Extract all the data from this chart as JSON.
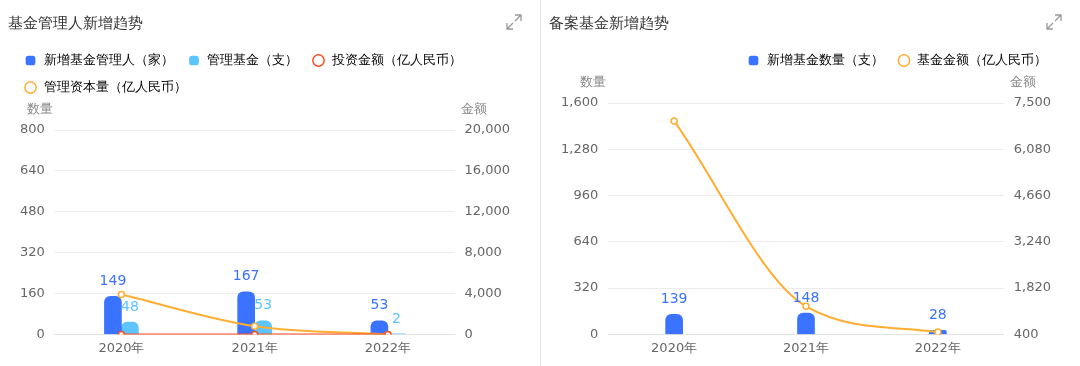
{
  "chart_data": [
    {
      "type": "bar",
      "title": "基金管理人新增趋势",
      "ylabel": "数量",
      "y2label": "金额",
      "categories": [
        "2020年",
        "2021年",
        "2022年"
      ],
      "series": [
        {
          "name": "新增基金管理人（家）",
          "color": "#3a73ff",
          "values": [
            149,
            167,
            53
          ],
          "value_labels": [
            "149",
            "167",
            "53"
          ]
        },
        {
          "name": "管理基金（支）",
          "color": "#5cc4ff",
          "values": [
            48,
            53,
            2
          ],
          "value_labels": [
            "48",
            "53",
            "2"
          ]
        },
        {
          "name": "投资金额（亿人民币）",
          "type": "line",
          "axis": "y2",
          "color": "#ff4a1f",
          "values": [
            0,
            0,
            0
          ]
        },
        {
          "name": "管理资本量（亿人民币）",
          "type": "line",
          "axis": "y2",
          "color": "#ffad33",
          "values": [
            3900,
            800,
            0
          ]
        }
      ],
      "ylim": [
        0,
        800
      ],
      "yticks": [
        0,
        160,
        320,
        480,
        640,
        800
      ],
      "y2lim": [
        0,
        20000
      ],
      "y2ticks": [
        0,
        {
          "value": 4000,
          "label": "4,000"
        },
        {
          "value": 8000,
          "label": "8,000"
        },
        {
          "value": 12000,
          "label": "12,000"
        },
        {
          "value": 16000,
          "label": "16,000"
        },
        {
          "value": 20000,
          "label": "20,000"
        }
      ],
      "grid": "y",
      "legend": "top left",
      "marker": "circle"
    },
    {
      "type": "bar",
      "title": "备案基金新增趋势",
      "ylabel": "数量",
      "y2label": "金额",
      "categories": [
        "2020年",
        "2021年",
        "2022年"
      ],
      "series": [
        {
          "name": "新增基金数量（支）",
          "color": "#3a73ff",
          "values": [
            139,
            148,
            28
          ],
          "value_labels": [
            "139",
            "148",
            "28"
          ]
        },
        {
          "name": "基金金额（亿人民币）",
          "type": "line",
          "axis": "y2",
          "color": "#ffad33",
          "values": [
            6950,
            1260,
            470
          ]
        }
      ],
      "ylim": [
        0,
        1600
      ],
      "yticks": [
        0,
        {
          "value": 320,
          "label": "320"
        },
        {
          "value": 640,
          "label": "640"
        },
        {
          "value": 960,
          "label": "960"
        },
        {
          "value": 1280,
          "label": "1,280"
        },
        {
          "value": 1600,
          "label": "1,600"
        }
      ],
      "y2lim": [
        400,
        7500
      ],
      "y2ticks": [
        400,
        {
          "value": 1820,
          "label": "1,820"
        },
        {
          "value": 3240,
          "label": "3,240"
        },
        {
          "value": 4660,
          "label": "4,660"
        },
        {
          "value": 6080,
          "label": "6,080"
        },
        {
          "value": 7500,
          "label": "7,500"
        }
      ],
      "grid": "y",
      "legend": "top right",
      "marker": "circle"
    }
  ]
}
